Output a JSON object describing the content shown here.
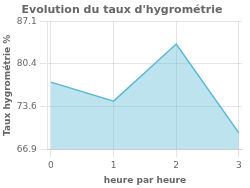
{
  "chart_data": {
    "type": "area",
    "title": "Evolution du taux d'hygrométrie",
    "xlabel": "heure par heure",
    "ylabel": "Taux hygrométrie %",
    "x": [
      0,
      1,
      2,
      3
    ],
    "values": [
      77.5,
      74.5,
      83.5,
      69.5
    ],
    "color": "#5bb8d4",
    "xlim": [
      -0.05,
      3.05
    ],
    "xticks": [
      0,
      1,
      2,
      3
    ],
    "ylim": [
      66.9,
      87.1
    ],
    "yticks": [
      66.9,
      73.6,
      80.4,
      87.1
    ],
    "grid": true
  }
}
